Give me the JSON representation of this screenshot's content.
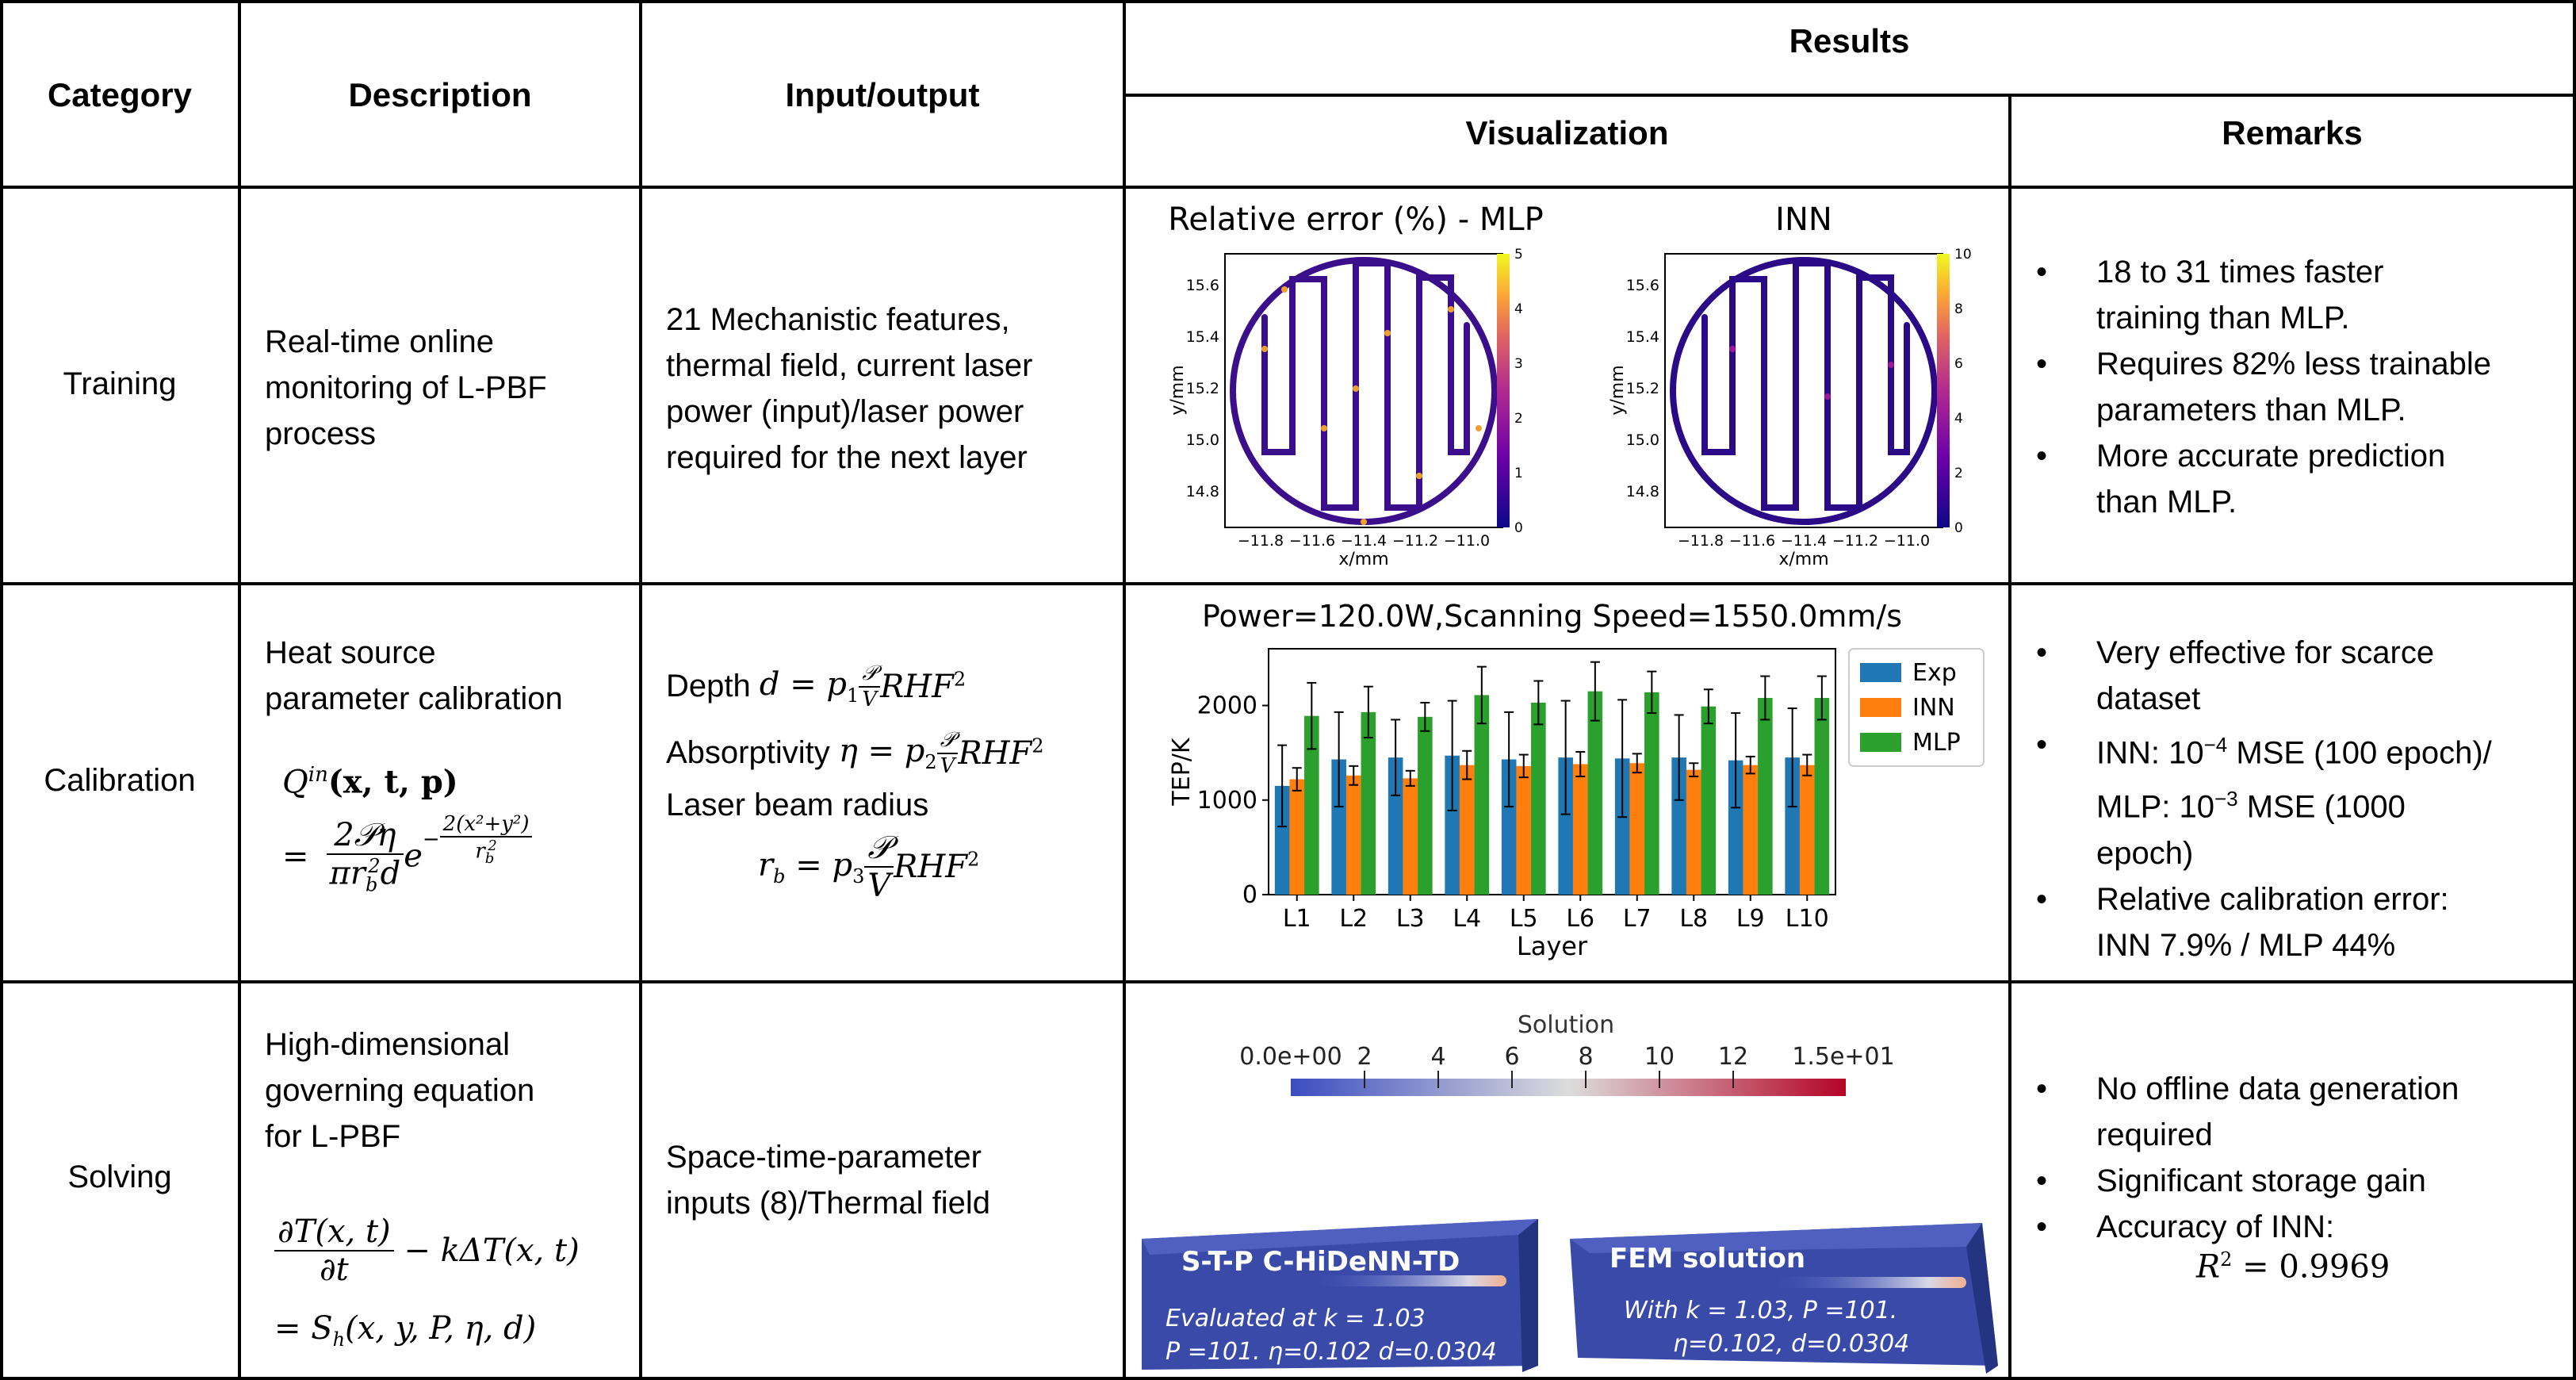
{
  "header": {
    "category": "Category",
    "description": "Description",
    "io": "Input/output",
    "results": "Results",
    "visualization": "Visualization",
    "remarks": "Remarks"
  },
  "rows": {
    "training": {
      "category": "Training",
      "description_lines": [
        "Real-time online",
        "monitoring of L-PBF",
        "process"
      ],
      "io_lines": [
        "21 Mechanistic features,",
        "thermal field, current laser",
        "power (input)/laser power",
        "required for the next layer"
      ],
      "remarks": [
        {
          "bullet": "•",
          "lines": [
            "18 to 31 times faster",
            "training than MLP."
          ]
        },
        {
          "bullet": "•",
          "lines": [
            "Requires 82% less trainable",
            "parameters than MLP."
          ]
        },
        {
          "bullet": "•",
          "lines": [
            "More accurate prediction",
            "than MLP."
          ]
        }
      ],
      "plots": [
        {
          "title": "Relative error (%) - MLP",
          "xlabel": "x/mm",
          "ylabel": "y/mm",
          "xticks": [
            "−11.8",
            "−11.6",
            "−11.4",
            "−11.2",
            "−11.0"
          ],
          "yticks": [
            "15.6",
            "15.4",
            "15.2",
            "15.0",
            "14.8"
          ],
          "cbticks": [
            "5",
            "4",
            "3",
            "2",
            "1",
            "0"
          ]
        },
        {
          "title": "INN",
          "xlabel": "x/mm",
          "ylabel": "y/mm",
          "xticks": [
            "−11.8",
            "−11.6",
            "−11.4",
            "−11.2",
            "−11.0"
          ],
          "yticks": [
            "15.6",
            "15.4",
            "15.2",
            "15.0",
            "14.8"
          ],
          "cbticks": [
            "10",
            "8",
            "6",
            "4",
            "2",
            "0"
          ]
        }
      ]
    },
    "calibration": {
      "category": "Calibration",
      "description_lines": [
        "Heat source",
        "parameter calibration"
      ],
      "eq": {
        "q": "Q",
        "q_sup": "in",
        "q_args": "(x, t, p)",
        "eq_sign": "=",
        "num": "2𝒫η",
        "den": "πr",
        "den_sub": "b",
        "den_sup": "2",
        "den_tail": "d",
        "e": "e",
        "exp_sign": "−",
        "exp_num": "2(x²+y²)",
        "exp_den": "r",
        "exp_den_sub": "b",
        "exp_den_sup": "2"
      },
      "io": {
        "depth_label": "Depth",
        "depth_expr": "d = p",
        "abs_label": "Absorptivity",
        "abs_expr": "η = p",
        "radius_label": "Laser beam radius",
        "radius_expr": "r",
        "sub1": "1",
        "sub2": "2",
        "sub3": "3",
        "subb": "b",
        "frac_num": "𝒫",
        "frac_den": "V",
        "tail": "RHF",
        "tail_sup": "2"
      },
      "remarks": [
        {
          "bullet": "•",
          "lines": [
            "Very effective for scarce",
            "dataset"
          ]
        },
        {
          "bullet": "•",
          "lines_html": [
            "INN: 10",
            "−4",
            " MSE (100 epoch)/",
            "MLP: 10",
            "−3",
            " MSE (1000",
            "epoch)"
          ]
        },
        {
          "bullet": "•",
          "lines": [
            "Relative calibration error:",
            "INN 7.9% / MLP 44%"
          ]
        }
      ]
    },
    "solving": {
      "category": "Solving",
      "description_lines": [
        "High-dimensional",
        "governing equation",
        "for L-PBF"
      ],
      "eq": {
        "num": "∂T(x, t)",
        "den": "∂t",
        "mid": "− kΔT(x, t)",
        "rhs": "= S",
        "rhs_sub": "h",
        "rhs_args": "(x, y, P, η, d)"
      },
      "io_lines": [
        "Space-time-parameter",
        "inputs (8)/Thermal field"
      ],
      "remarks": [
        {
          "bullet": "•",
          "lines": [
            "No offline data generation",
            "required"
          ]
        },
        {
          "bullet": "•",
          "lines": [
            "Significant storage gain"
          ]
        },
        {
          "bullet": "•",
          "lines": [
            "Accuracy of INN:"
          ]
        }
      ],
      "r2": {
        "label": "R",
        "sup": "2",
        "value": "= 0.9969"
      },
      "viz": {
        "colorbar_title": "Solution",
        "colorbar_ticks": [
          "0.0e+00",
          "2",
          "4",
          "6",
          "8",
          "10",
          "12",
          "1.5e+01"
        ],
        "left_block_title": "S-T-P C-HiDeNN-TD",
        "left_line1": "Evaluated at k = 1.03",
        "left_line2": "P =101.   η=0.102  d=0.0304",
        "right_block_title": "FEM solution",
        "right_line1": "With k = 1.03,  P =101.",
        "right_line2": "η=0.102,  d=0.0304"
      }
    }
  },
  "chart_data": {
    "type": "bar",
    "title": "Power=120.0W,Scanning Speed=1550.0mm/s",
    "xlabel": "Layer",
    "ylabel": "TEP/K",
    "ylim": [
      0,
      2600
    ],
    "yticks": [
      0,
      1000,
      2000
    ],
    "categories": [
      "L1",
      "L2",
      "L3",
      "L4",
      "L5",
      "L6",
      "L7",
      "L8",
      "L9",
      "L10"
    ],
    "legend_position": "top-right",
    "series": [
      {
        "name": "Exp",
        "color": "#1f77b4",
        "values": [
          1150,
          1430,
          1450,
          1470,
          1430,
          1450,
          1440,
          1450,
          1420,
          1450
        ],
        "errors": [
          430,
          500,
          400,
          580,
          500,
          600,
          620,
          450,
          500,
          520
        ]
      },
      {
        "name": "INN",
        "color": "#ff7f0e",
        "values": [
          1220,
          1260,
          1230,
          1370,
          1360,
          1380,
          1390,
          1320,
          1370,
          1370
        ],
        "errors": [
          120,
          100,
          80,
          150,
          120,
          130,
          100,
          70,
          90,
          110
        ]
      },
      {
        "name": "MLP",
        "color": "#2ca02c",
        "values": [
          1890,
          1930,
          1880,
          2110,
          2030,
          2150,
          2140,
          1990,
          2080,
          2080
        ],
        "errors": [
          350,
          270,
          150,
          300,
          230,
          310,
          220,
          180,
          230,
          230
        ]
      }
    ]
  }
}
